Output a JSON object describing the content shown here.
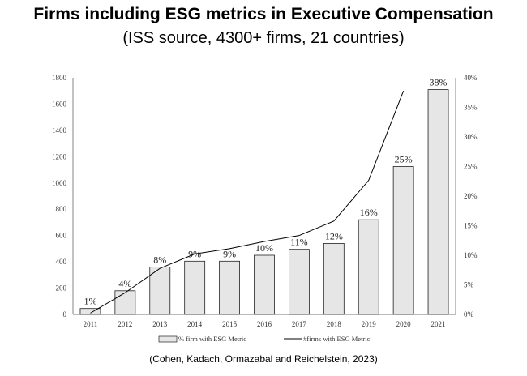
{
  "header": {
    "title": "Firms including ESG metrics in Executive Compensation",
    "subtitle": "(ISS source, 4300+ firms, 21 countries)"
  },
  "citation": "(Cohen, Kadach, Ormazabal and Reichelstein, 2023)",
  "chart_data": {
    "type": "bar",
    "categories": [
      "2011",
      "2012",
      "2013",
      "2014",
      "2015",
      "2016",
      "2017",
      "2018",
      "2019",
      "2020",
      "2021"
    ],
    "series": [
      {
        "name": "% firm with ESG Metric",
        "kind": "bar",
        "axis": "right",
        "values": [
          1,
          4,
          8,
          9,
          9,
          10,
          11,
          12,
          16,
          25,
          38
        ],
        "labels": [
          "1%",
          "4%",
          "8%",
          "9%",
          "9%",
          "10%",
          "11%",
          "12%",
          "16%",
          "25%",
          "38%"
        ],
        "color": "#e6e6e6"
      },
      {
        "name": "#firms with ESG Metric",
        "kind": "line",
        "axis": "left",
        "values": [
          10,
          165,
          350,
          460,
          500,
          555,
          600,
          710,
          1020,
          1700,
          null
        ],
        "color": "#000000"
      }
    ],
    "left_axis": {
      "ylim": [
        0,
        1800
      ],
      "ticks": [
        "0",
        "200",
        "400",
        "600",
        "800",
        "1000",
        "1200",
        "1400",
        "1600",
        "1800"
      ]
    },
    "right_axis": {
      "ylim": [
        0,
        40
      ],
      "ticks": [
        "0%",
        "5%",
        "10%",
        "15%",
        "20%",
        "25%",
        "30%",
        "35%",
        "40%"
      ]
    },
    "legend_position": "bottom"
  }
}
